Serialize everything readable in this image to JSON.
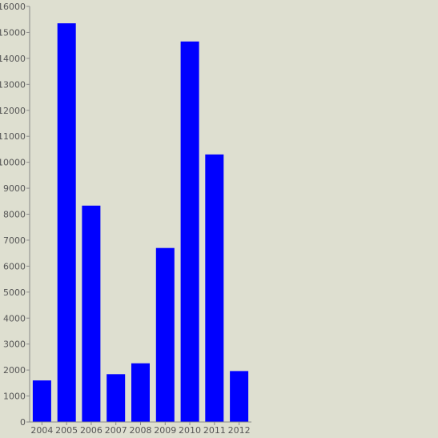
{
  "colors": {
    "background": "#dedfd0",
    "bar": "#0000ff",
    "axis": "#888888",
    "tick_text": "#555555"
  },
  "chart_data": {
    "type": "bar",
    "title": "",
    "xlabel": "",
    "ylabel": "",
    "categories": [
      "2004",
      "2005",
      "2006",
      "2007",
      "2008",
      "2009",
      "2010",
      "2011",
      "2012"
    ],
    "values": [
      1600,
      15350,
      8330,
      1840,
      2260,
      6700,
      14650,
      10300,
      1960
    ],
    "ylim": [
      0,
      16000
    ],
    "yticks": [
      0,
      1000,
      2000,
      3000,
      4000,
      5000,
      6000,
      7000,
      8000,
      9000,
      10000,
      11000,
      12000,
      13000,
      14000,
      15000,
      16000
    ],
    "grid": false,
    "legend": "none"
  }
}
